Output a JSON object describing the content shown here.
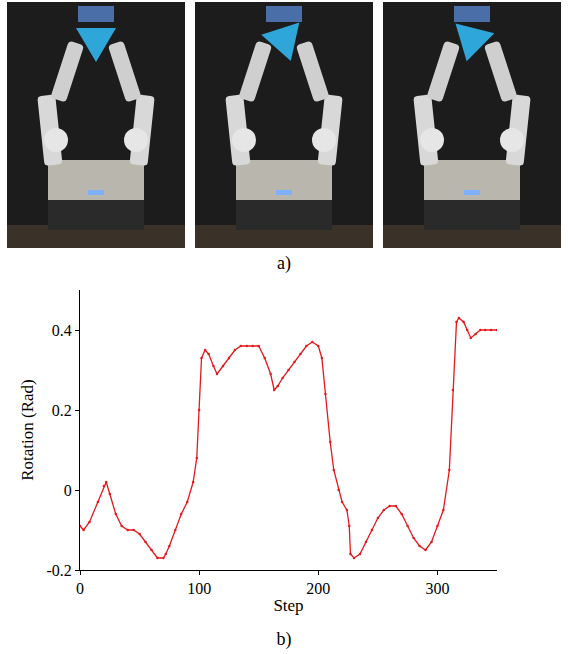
{
  "figure": {
    "panel_labels": [
      "a)",
      "b)"
    ]
  },
  "chart_data": {
    "type": "line",
    "x_label": "Step",
    "y_label": "Rotation (Rad)",
    "x": [
      0,
      3,
      8,
      15,
      20,
      22,
      25,
      30,
      35,
      40,
      45,
      50,
      55,
      60,
      65,
      70,
      72,
      75,
      80,
      85,
      90,
      95,
      98,
      100,
      102,
      105,
      108,
      112,
      115,
      120,
      125,
      130,
      135,
      140,
      145,
      150,
      155,
      160,
      163,
      166,
      170,
      175,
      180,
      185,
      190,
      195,
      200,
      203,
      206,
      210,
      213,
      217,
      220,
      224,
      226,
      227,
      230,
      235,
      240,
      245,
      250,
      255,
      260,
      265,
      270,
      275,
      280,
      285,
      290,
      295,
      300,
      305,
      310,
      313,
      316,
      318,
      322,
      325,
      328,
      332,
      336,
      340,
      345,
      350
    ],
    "values": [
      -0.09,
      -0.1,
      -0.08,
      -0.03,
      0.01,
      0.02,
      -0.01,
      -0.06,
      -0.09,
      -0.1,
      -0.1,
      -0.11,
      -0.13,
      -0.15,
      -0.17,
      -0.17,
      -0.16,
      -0.14,
      -0.1,
      -0.06,
      -0.03,
      0.02,
      0.08,
      0.2,
      0.33,
      0.35,
      0.34,
      0.31,
      0.29,
      0.31,
      0.33,
      0.35,
      0.36,
      0.36,
      0.36,
      0.36,
      0.33,
      0.29,
      0.25,
      0.26,
      0.28,
      0.3,
      0.32,
      0.34,
      0.36,
      0.37,
      0.36,
      0.33,
      0.24,
      0.12,
      0.05,
      0.0,
      -0.03,
      -0.05,
      -0.09,
      -0.16,
      -0.17,
      -0.16,
      -0.13,
      -0.1,
      -0.07,
      -0.05,
      -0.04,
      -0.04,
      -0.06,
      -0.09,
      -0.12,
      -0.14,
      -0.15,
      -0.13,
      -0.09,
      -0.05,
      0.05,
      0.25,
      0.42,
      0.43,
      0.42,
      0.4,
      0.38,
      0.39,
      0.4,
      0.4,
      0.4,
      0.4
    ],
    "color": "#e31a1c",
    "marker": "dot",
    "line_style": "solid",
    "xlim": [
      0,
      350
    ],
    "xticks": [
      0,
      100,
      200,
      300
    ],
    "ylim": [
      -0.2,
      0.5
    ],
    "yticks": [
      -0.2,
      0,
      0.2,
      0.4
    ],
    "grid": false
  }
}
